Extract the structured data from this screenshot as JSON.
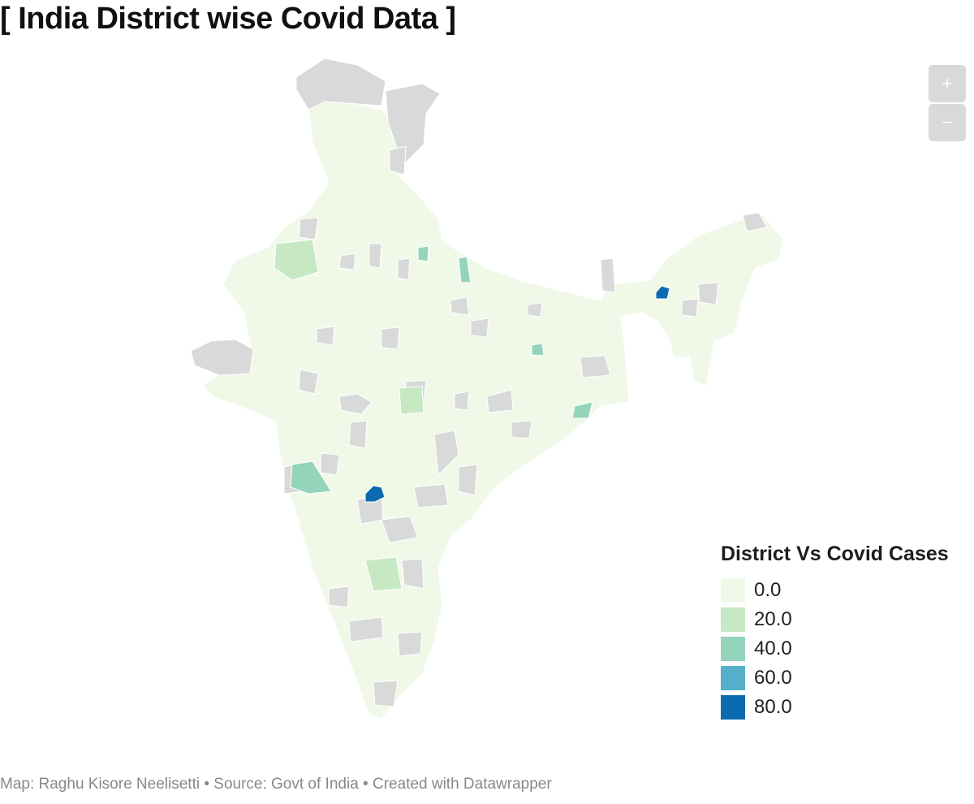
{
  "title": "[ India District wise Covid Data ]",
  "zoom_controls": {
    "zoom_in": "+",
    "zoom_out": "−"
  },
  "legend": {
    "title": "District Vs Covid Cases",
    "items": [
      {
        "label": "0.0",
        "color": "#f0f9e8"
      },
      {
        "label": "20.0",
        "color": "#c6e8c3"
      },
      {
        "label": "40.0",
        "color": "#94d4bb"
      },
      {
        "label": "60.0",
        "color": "#56afca"
      },
      {
        "label": "80.0",
        "color": "#0c6bb0"
      }
    ]
  },
  "colors": {
    "no_data": "#d9d9d9",
    "base": "#f0f9e8"
  },
  "footer": "Map: Raghu Kisore Neelisetti • Source: Govt of India • Created with Datawrapper"
}
